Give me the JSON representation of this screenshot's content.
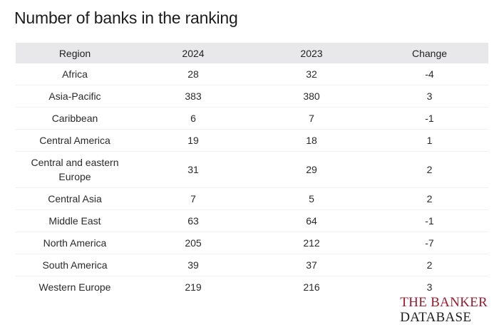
{
  "title": "Number of banks in the ranking",
  "chart_data": {
    "type": "table",
    "title": "Number of banks in the ranking",
    "columns": [
      "Region",
      "2024",
      "2023",
      "Change"
    ],
    "rows": [
      {
        "region": "Africa",
        "y2024": "28",
        "y2023": "32",
        "change": "-4"
      },
      {
        "region": "Asia-Pacific",
        "y2024": "383",
        "y2023": "380",
        "change": "3"
      },
      {
        "region": "Caribbean",
        "y2024": "6",
        "y2023": "7",
        "change": "-1"
      },
      {
        "region": "Central America",
        "y2024": "19",
        "y2023": "18",
        "change": "1"
      },
      {
        "region": "Central and eastern Europe",
        "y2024": "31",
        "y2023": "29",
        "change": "2"
      },
      {
        "region": "Central Asia",
        "y2024": "7",
        "y2023": "5",
        "change": "2"
      },
      {
        "region": "Middle East",
        "y2024": "63",
        "y2023": "64",
        "change": "-1"
      },
      {
        "region": "North America",
        "y2024": "205",
        "y2023": "212",
        "change": "-7"
      },
      {
        "region": "South America",
        "y2024": "39",
        "y2023": "37",
        "change": "2"
      },
      {
        "region": "Western Europe",
        "y2024": "219",
        "y2023": "216",
        "change": "3"
      }
    ]
  },
  "brand": {
    "line1": "THE BANKER",
    "line2": "DATABASE"
  }
}
